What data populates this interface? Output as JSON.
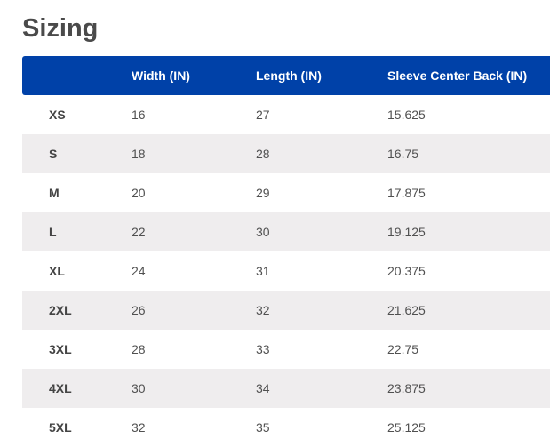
{
  "title": "Sizing",
  "colors": {
    "header_bg": "#0041a8",
    "alt_row_bg": "#efedee",
    "title_text": "#4a4a4a"
  },
  "table": {
    "headers": [
      "",
      "Width (IN)",
      "Length (IN)",
      "Sleeve Center Back (IN)"
    ],
    "rows": [
      [
        "XS",
        "16",
        "27",
        "15.625"
      ],
      [
        "S",
        "18",
        "28",
        "16.75"
      ],
      [
        "M",
        "20",
        "29",
        "17.875"
      ],
      [
        "L",
        "22",
        "30",
        "19.125"
      ],
      [
        "XL",
        "24",
        "31",
        "20.375"
      ],
      [
        "2XL",
        "26",
        "32",
        "21.625"
      ],
      [
        "3XL",
        "28",
        "33",
        "22.75"
      ],
      [
        "4XL",
        "30",
        "34",
        "23.875"
      ],
      [
        "5XL",
        "32",
        "35",
        "25.125"
      ]
    ]
  }
}
